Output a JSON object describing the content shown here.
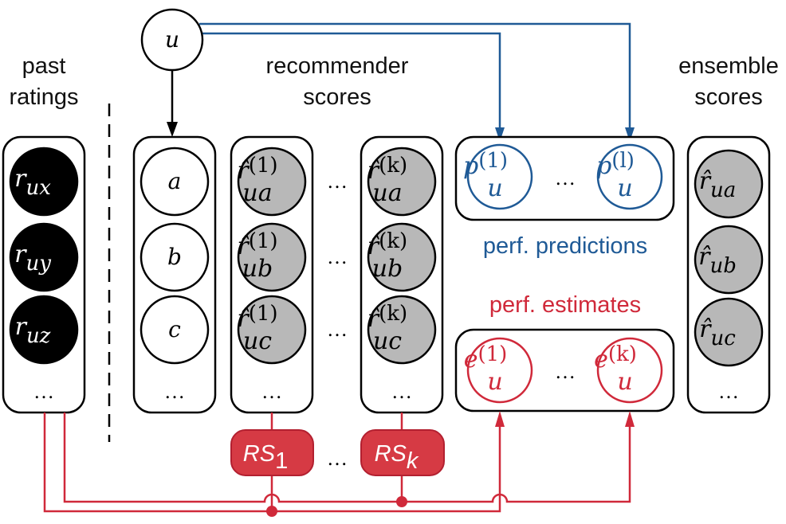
{
  "labels": {
    "past_ratings": [
      "past",
      "ratings"
    ],
    "recommender_scores": [
      "recommender",
      "scores"
    ],
    "ensemble_scores": [
      "ensemble",
      "scores"
    ],
    "perf_predictions": "perf. predictions",
    "perf_estimates": "perf. estimates"
  },
  "user_node": "u",
  "past_ratings": [
    {
      "base": "r",
      "sub": "ux"
    },
    {
      "base": "r",
      "sub": "uy"
    },
    {
      "base": "r",
      "sub": "uz"
    }
  ],
  "items": [
    "a",
    "b",
    "c"
  ],
  "rs1_scores": [
    {
      "base": "r̂",
      "sup": "(1)",
      "sub": "ua"
    },
    {
      "base": "r̂",
      "sup": "(1)",
      "sub": "ub"
    },
    {
      "base": "r̂",
      "sup": "(1)",
      "sub": "uc"
    }
  ],
  "rsk_scores": [
    {
      "base": "r̂",
      "sup": "(k)",
      "sub": "ua"
    },
    {
      "base": "r̂",
      "sup": "(k)",
      "sub": "ub"
    },
    {
      "base": "r̂",
      "sup": "(k)",
      "sub": "uc"
    }
  ],
  "predictions": [
    {
      "base": "p",
      "sup": "(1)",
      "sub": "u"
    },
    {
      "base": "p",
      "sup": "(l)",
      "sub": "u"
    }
  ],
  "estimates": [
    {
      "base": "e",
      "sup": "(1)",
      "sub": "u"
    },
    {
      "base": "e",
      "sup": "(k)",
      "sub": "u"
    }
  ],
  "ensemble": [
    {
      "base": "r̂",
      "sub": "ua"
    },
    {
      "base": "r̂",
      "sub": "ub"
    },
    {
      "base": "r̂",
      "sub": "uc"
    }
  ],
  "recommenders": [
    {
      "base": "RS",
      "sub": "1"
    },
    {
      "base": "RS",
      "sub": "k"
    }
  ],
  "ellipsis": "…",
  "colors": {
    "blue": "#1f5a96",
    "red": "#d0293a",
    "rs_fill": "#d63a44",
    "gray_node": "#b8b8b8",
    "black_node": "#000000"
  }
}
